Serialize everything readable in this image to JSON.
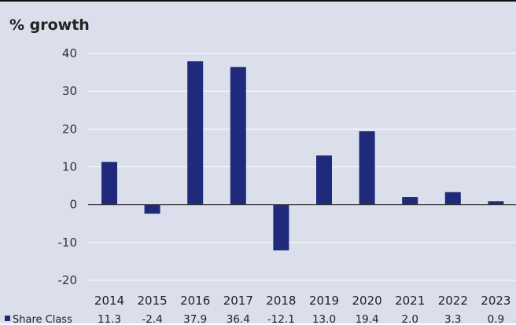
{
  "chart_data": {
    "type": "bar",
    "title": "% growth",
    "categories": [
      "2014",
      "2015",
      "2016",
      "2017",
      "2018",
      "2019",
      "2020",
      "2021",
      "2022",
      "2023"
    ],
    "series": [
      {
        "name": "Share Class",
        "values": [
          11.3,
          -2.4,
          37.9,
          36.4,
          -12.1,
          13.0,
          19.4,
          2.0,
          3.3,
          0.9
        ],
        "labels": [
          "11.3",
          "-2.4",
          "37.9",
          "36.4",
          "-12.1",
          "13.0",
          "19.4",
          "2.0",
          "3.3",
          "0.9"
        ]
      }
    ],
    "yticks": [
      40,
      30,
      20,
      10,
      0,
      -10,
      -20
    ],
    "ylim": [
      -20,
      40
    ],
    "grid": true,
    "legend": "bottom-left, inline with data table",
    "colors": {
      "bar": "#1f2b7a",
      "background": "#dbdeeb",
      "grid": "#ffffff",
      "zero_line": "#333333"
    }
  }
}
